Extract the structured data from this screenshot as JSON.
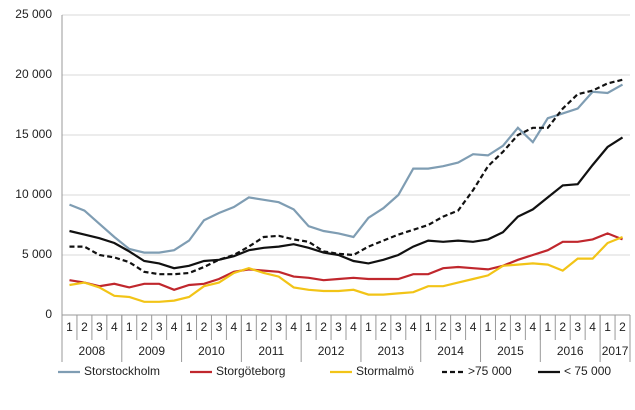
{
  "chart_data": {
    "type": "line",
    "categories": [
      "1",
      "2",
      "3",
      "4",
      "1",
      "2",
      "3",
      "4",
      "1",
      "2",
      "3",
      "4",
      "1",
      "2",
      "3",
      "4",
      "1",
      "2",
      "3",
      "4",
      "1",
      "2",
      "3",
      "4",
      "1",
      "2",
      "3",
      "4",
      "1",
      "2",
      "3",
      "4",
      "1",
      "2",
      "3",
      "4",
      "1",
      "2"
    ],
    "years": [
      "2008",
      "2009",
      "2010",
      "2011",
      "2012",
      "2013",
      "2014",
      "2015",
      "2016",
      "2017"
    ],
    "ylim": [
      0,
      25000
    ],
    "yticks": [
      0,
      {
        "value": 5000,
        "label": "5 000"
      },
      {
        "value": 10000,
        "label": "10 000"
      },
      {
        "value": 15000,
        "label": "15 000"
      },
      {
        "value": 20000,
        "label": "20 000"
      },
      {
        "value": 25000,
        "label": "25 000"
      }
    ],
    "grid": true,
    "legend": "bottom",
    "series": [
      {
        "name": "Storstockholm",
        "color": "#7f9db3",
        "dashed": false,
        "values": [
          9200,
          8700,
          7600,
          6500,
          5500,
          5200,
          5200,
          5400,
          6200,
          7900,
          8500,
          9000,
          9800,
          9600,
          9400,
          8800,
          7400,
          7000,
          6800,
          6500,
          8100,
          8900,
          10000,
          12200,
          12200,
          12400,
          12700,
          13400,
          13300,
          14100,
          15600,
          14400,
          16400,
          16800,
          17200,
          18600,
          18500,
          19200
        ]
      },
      {
        "name": "Storgöteborg",
        "color": "#c0272d",
        "dashed": false,
        "values": [
          2900,
          2700,
          2400,
          2600,
          2300,
          2600,
          2600,
          2100,
          2500,
          2600,
          3000,
          3600,
          3800,
          3700,
          3600,
          3200,
          3100,
          2900,
          3000,
          3100,
          3000,
          3000,
          3000,
          3400,
          3400,
          3900,
          4000,
          3900,
          3800,
          4100,
          4600,
          5000,
          5400,
          6100,
          6100,
          6300,
          6800,
          6300
        ]
      },
      {
        "name": "Stormalmö",
        "color": "#f2c417",
        "dashed": false,
        "values": [
          2500,
          2700,
          2300,
          1600,
          1500,
          1100,
          1100,
          1200,
          1500,
          2400,
          2700,
          3500,
          3900,
          3500,
          3200,
          2300,
          2100,
          2000,
          2000,
          2100,
          1700,
          1700,
          1800,
          1900,
          2400,
          2400,
          2700,
          3000,
          3300,
          4100,
          4200,
          4300,
          4200,
          3700,
          4700,
          4700,
          6000,
          6500
        ]
      },
      {
        "name": ">75 000",
        "color": "#111111",
        "dashed": true,
        "values": [
          5700,
          5700,
          5000,
          4800,
          4400,
          3600,
          3400,
          3400,
          3500,
          4000,
          4600,
          5000,
          5700,
          6500,
          6600,
          6300,
          6100,
          5300,
          5100,
          5000,
          5700,
          6200,
          6700,
          7100,
          7500,
          8200,
          8700,
          10400,
          12400,
          13600,
          15000,
          15600,
          15600,
          17200,
          18400,
          18700,
          19300,
          19600
        ]
      },
      {
        "name": "< 75 000",
        "color": "#111111",
        "dashed": false,
        "values": [
          7000,
          6700,
          6400,
          6000,
          5300,
          4500,
          4300,
          3900,
          4100,
          4500,
          4600,
          4900,
          5400,
          5600,
          5700,
          5900,
          5600,
          5200,
          5000,
          4500,
          4300,
          4600,
          5000,
          5700,
          6200,
          6100,
          6200,
          6100,
          6300,
          6900,
          8200,
          8800,
          9800,
          10800,
          10900,
          12500,
          14000,
          14800
        ]
      }
    ]
  }
}
